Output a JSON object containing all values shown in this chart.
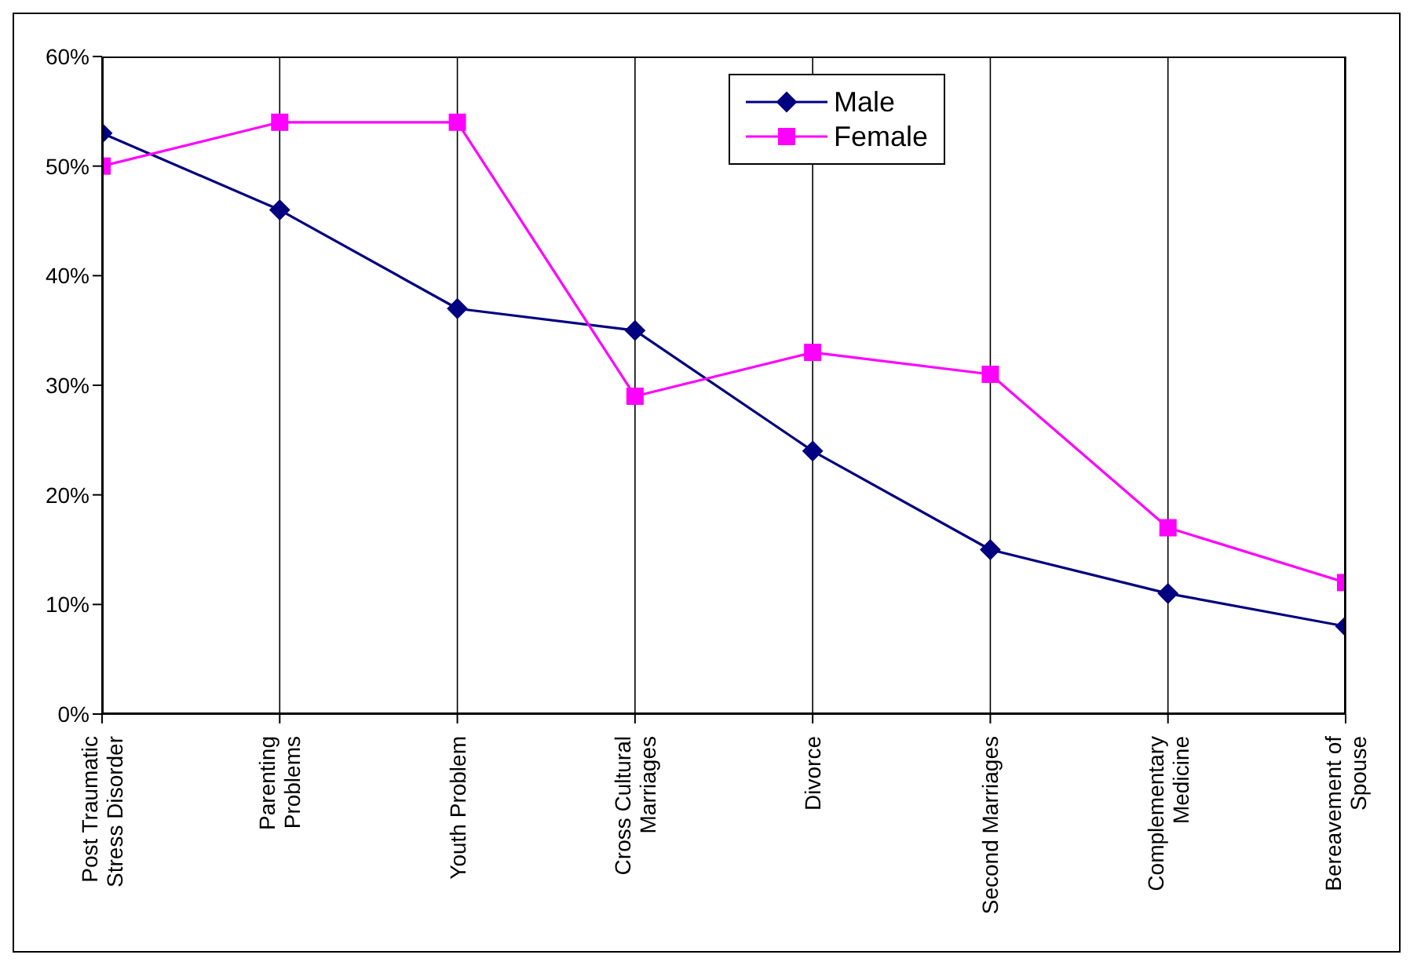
{
  "chart_data": {
    "type": "line",
    "categories": [
      "Post Traumatic Stress Disorder",
      "Parenting Problems",
      "Youth Problem",
      "Cross Cultural Marriages",
      "Divorce",
      "Second Marriages",
      "Complementary Medicine",
      "Bereavement of Spouse"
    ],
    "series": [
      {
        "name": "Male",
        "color": "#000080",
        "marker": "diamond",
        "values": [
          53,
          46,
          37,
          35,
          24,
          15,
          11,
          8
        ]
      },
      {
        "name": "Female",
        "color": "#ff00ff",
        "marker": "square",
        "values": [
          50,
          54,
          54,
          29,
          33,
          31,
          17,
          12
        ]
      }
    ],
    "ylim": [
      0,
      60
    ],
    "yticks": [
      {
        "value": 0,
        "label": "0%"
      },
      {
        "value": 10,
        "label": "10%"
      },
      {
        "value": 20,
        "label": "20%"
      },
      {
        "value": 30,
        "label": "30%"
      },
      {
        "value": 40,
        "label": "40%"
      },
      {
        "value": 50,
        "label": "50%"
      },
      {
        "value": 60,
        "label": "60%"
      }
    ],
    "grid": "x",
    "legend": "top right",
    "line_style": "solid"
  }
}
